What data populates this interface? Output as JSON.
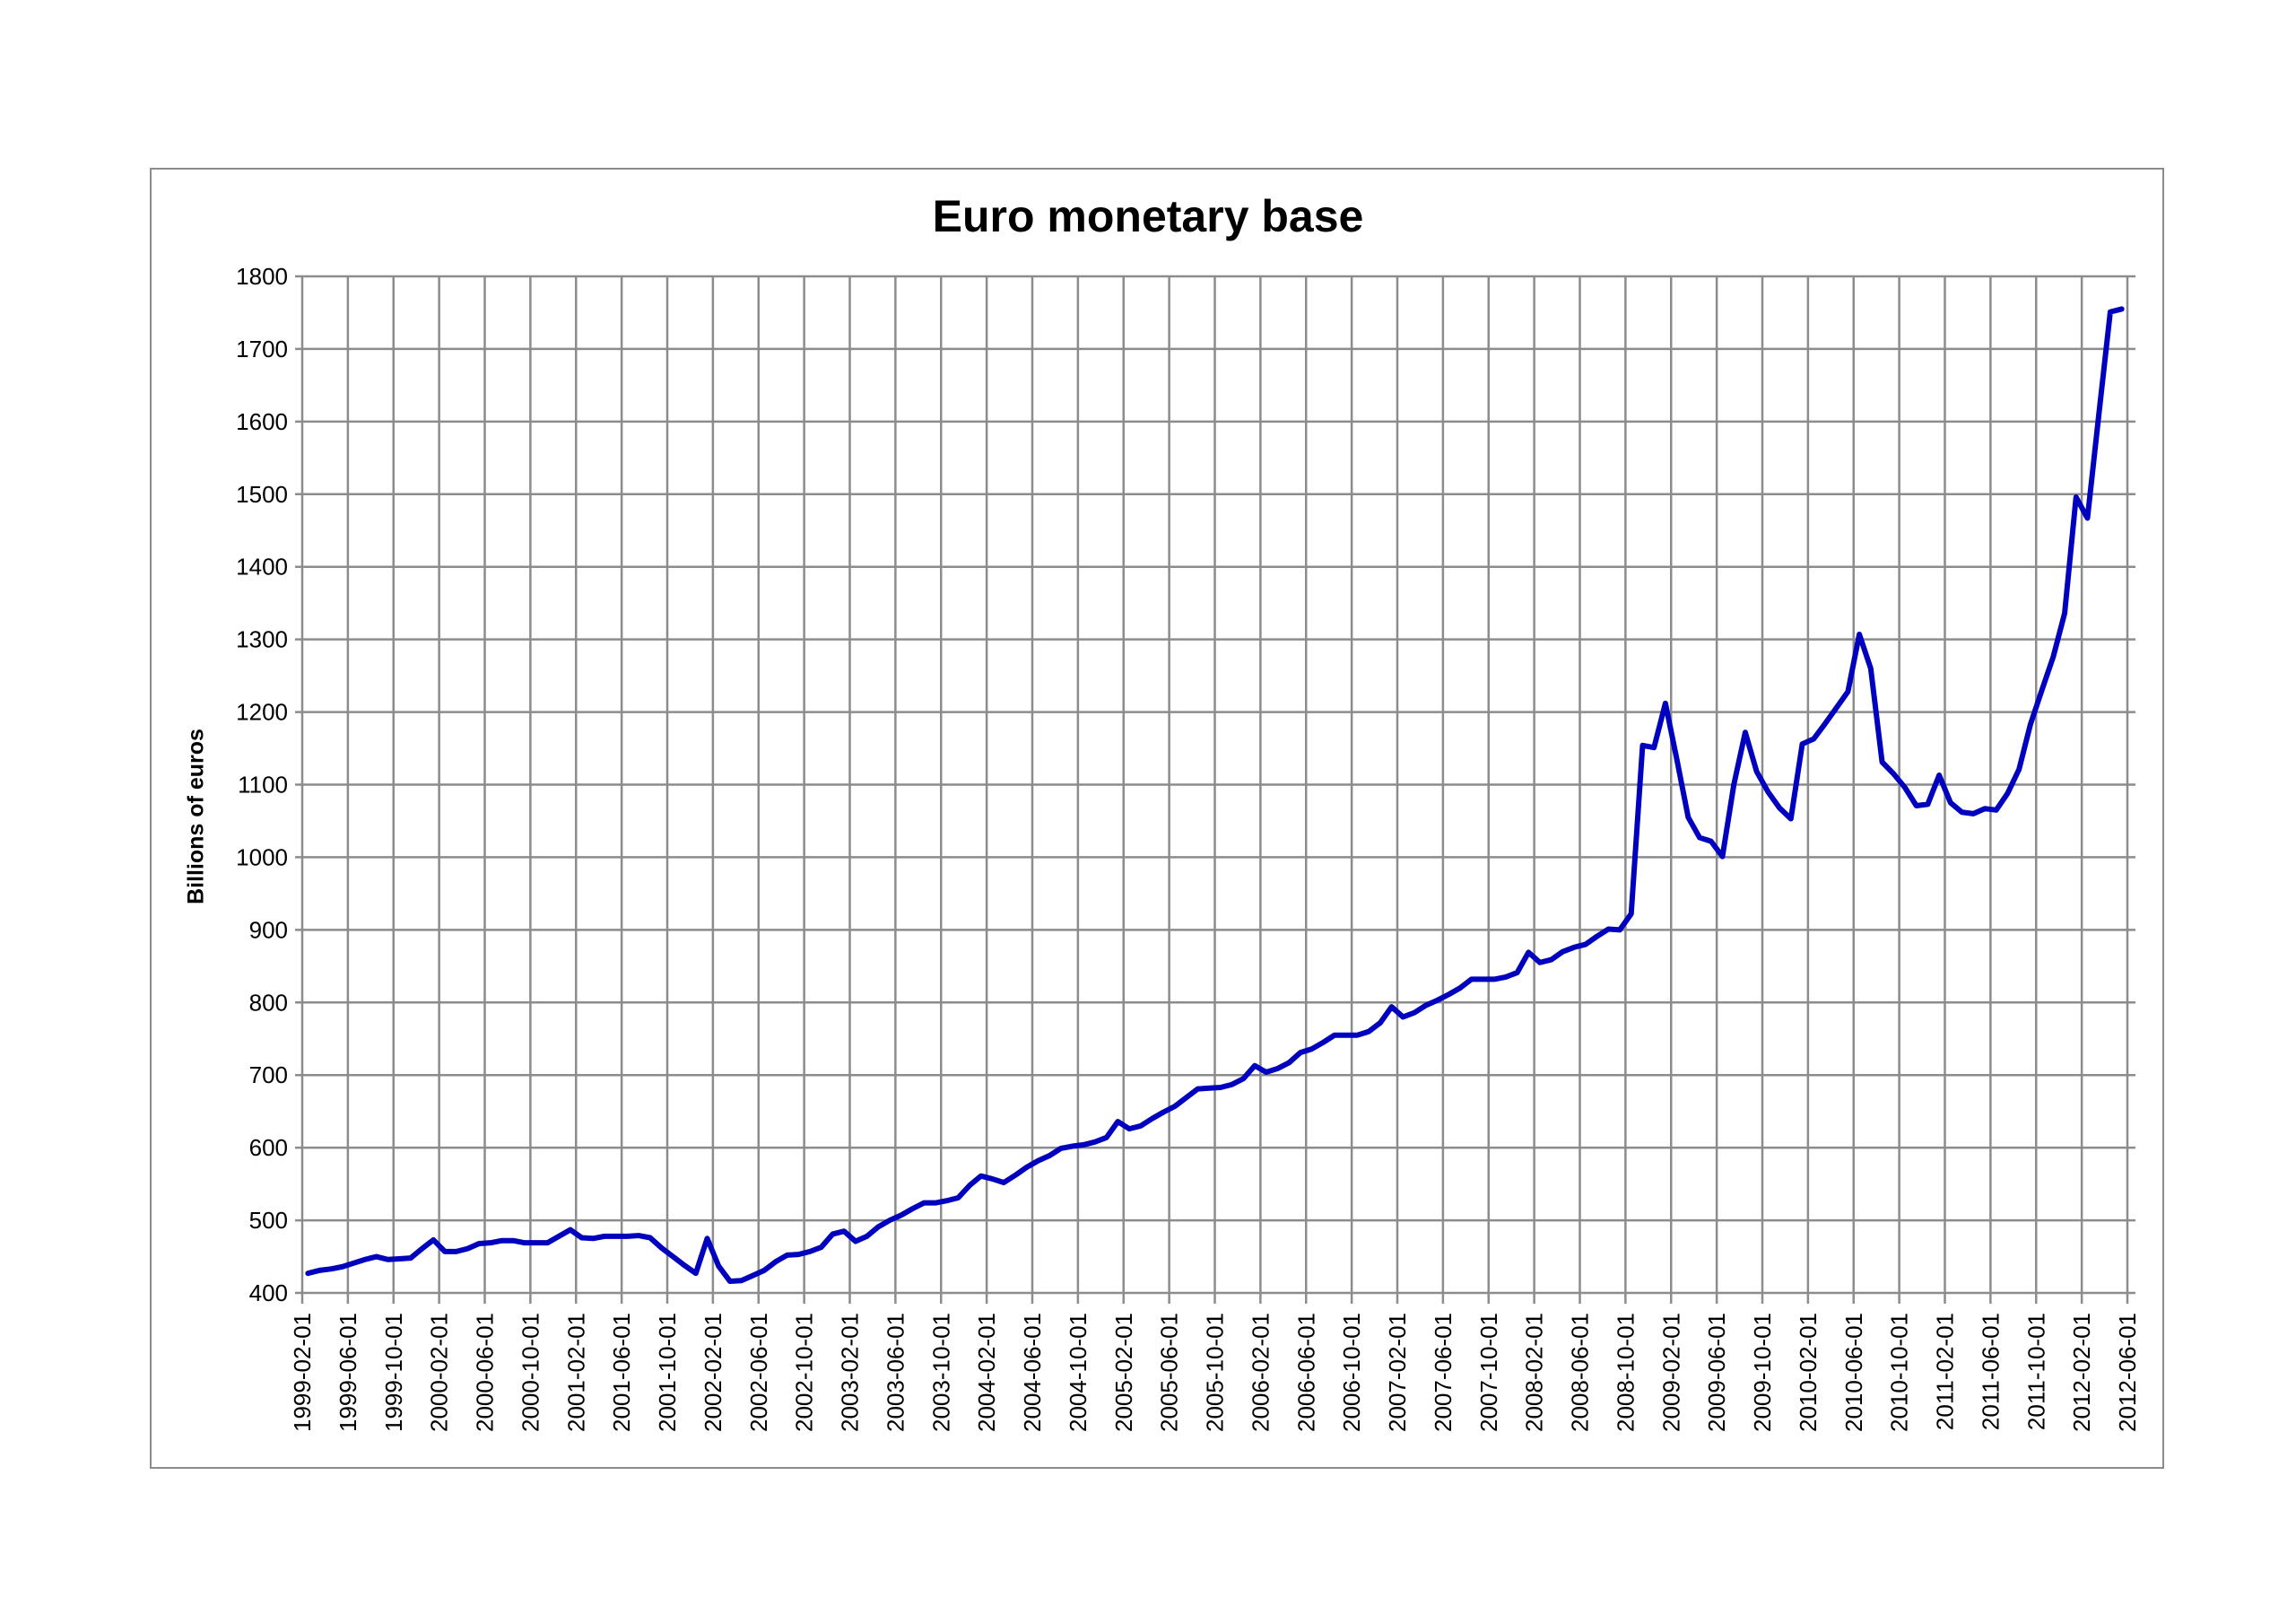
{
  "chart_data": {
    "type": "line",
    "title": "Euro monetary base",
    "xlabel": "",
    "ylabel": "Billions of euros",
    "ylim": [
      400,
      1800
    ],
    "yticks": [
      400,
      500,
      600,
      700,
      800,
      900,
      1000,
      1100,
      1200,
      1300,
      1400,
      1500,
      1600,
      1700,
      1800
    ],
    "grid": true,
    "legend": "none",
    "line_color": "#0000BF",
    "xtick_labels": [
      "1999-02-01",
      "1999-06-01",
      "1999-10-01",
      "2000-02-01",
      "2000-06-01",
      "2000-10-01",
      "2001-02-01",
      "2001-06-01",
      "2001-10-01",
      "2002-02-01",
      "2002-06-01",
      "2002-10-01",
      "2003-02-01",
      "2003-06-01",
      "2003-10-01",
      "2004-02-01",
      "2004-06-01",
      "2004-10-01",
      "2005-02-01",
      "2005-06-01",
      "2005-10-01",
      "2006-02-01",
      "2006-06-01",
      "2006-10-01",
      "2007-02-01",
      "2007-06-01",
      "2007-10-01",
      "2008-02-01",
      "2008-06-01",
      "2008-10-01",
      "2009-02-01",
      "2009-06-01",
      "2009-10-01",
      "2010-02-01",
      "2010-06-01",
      "2010-10-01",
      "2011-02-01",
      "2011-06-01",
      "2011-10-01",
      "2012-02-01",
      "2012-06-01"
    ],
    "x_start": "1999-02",
    "x_step": "monthly",
    "values": [
      427,
      431,
      433,
      436,
      441,
      446,
      450,
      446,
      447,
      448,
      461,
      473,
      457,
      457,
      461,
      468,
      469,
      472,
      472,
      469,
      469,
      469,
      478,
      487,
      476,
      475,
      478,
      478,
      478,
      479,
      476,
      462,
      450,
      438,
      427,
      475,
      437,
      416,
      417,
      424,
      431,
      443,
      452,
      453,
      457,
      463,
      481,
      485,
      471,
      478,
      491,
      500,
      507,
      516,
      524,
      524,
      527,
      531,
      548,
      561,
      557,
      552,
      562,
      573,
      582,
      589,
      599,
      602,
      604,
      608,
      614,
      636,
      626,
      630,
      640,
      649,
      657,
      669,
      681,
      682,
      683,
      687,
      695,
      713,
      704,
      709,
      717,
      731,
      736,
      745,
      755,
      755,
      755,
      760,
      772,
      794,
      780,
      786,
      796,
      803,
      811,
      820,
      832,
      832,
      832,
      835,
      841,
      869,
      855,
      859,
      870,
      876,
      880,
      891,
      901,
      900,
      922,
      1154,
      1151,
      1212,
      1135,
      1055,
      1027,
      1022,
      1001,
      1100,
      1172,
      1118,
      1090,
      1068,
      1053,
      1156,
      1163,
      1184,
      1206,
      1228,
      1307,
      1260,
      1131,
      1115,
      1096,
      1071,
      1073,
      1113,
      1075,
      1062,
      1060,
      1067,
      1065,
      1088,
      1121,
      1183,
      1230,
      1276,
      1336,
      1496,
      1467,
      1610,
      1751,
      1755
    ]
  }
}
